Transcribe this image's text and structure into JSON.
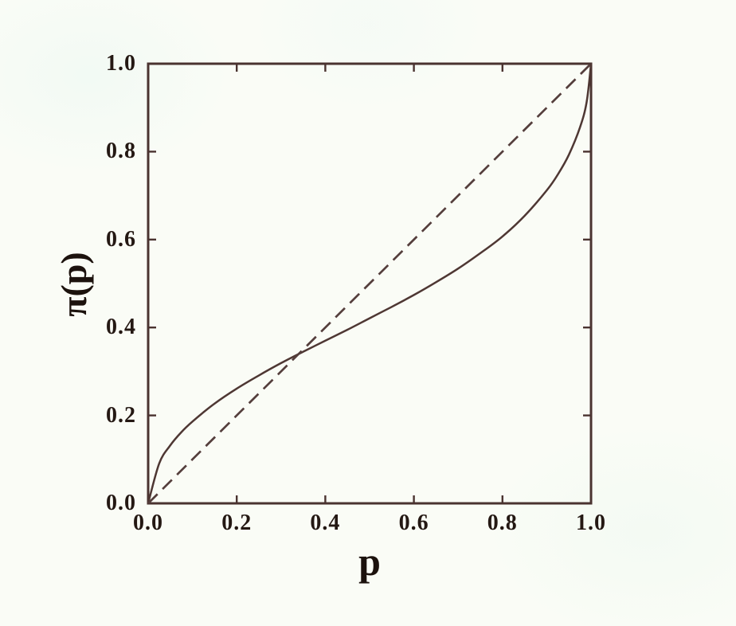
{
  "figure": {
    "background_color": "#fafcf6",
    "axis_color": "#4a3330",
    "curve_color": "#4e3733",
    "dashed_color": "#543e3c",
    "label_color": "#241813"
  },
  "chart_data": {
    "type": "line",
    "title": "",
    "xlabel": "p",
    "ylabel": "π(p)",
    "xlim": [
      0,
      1
    ],
    "ylim": [
      0,
      1
    ],
    "grid": false,
    "legend": "none",
    "x_tick_values": [
      0,
      0.2,
      0.4,
      0.6,
      0.8,
      1
    ],
    "x_tick_labels": [
      "0.0",
      "0.2",
      "0.4",
      "0.6",
      "0.8",
      "1.0"
    ],
    "y_tick_values": [
      0,
      0.2,
      0.4,
      0.6,
      0.8,
      1
    ],
    "y_tick_labels": [
      "0.0",
      "0.2",
      "0.4",
      "0.6",
      "0.8",
      "1.0"
    ],
    "crossing_point": [
      0.34,
      0.34
    ],
    "series": [
      {
        "name": "probability-weighting-curve",
        "style": "solid",
        "x": [
          0,
          0.025,
          0.05,
          0.075,
          0.1,
          0.15,
          0.2,
          0.25,
          0.3,
          0.35,
          0.4,
          0.45,
          0.5,
          0.55,
          0.6,
          0.65,
          0.7,
          0.75,
          0.8,
          0.85,
          0.9,
          0.925,
          0.95,
          0.975,
          0.99,
          1
        ],
        "y": [
          0,
          0.091,
          0.132,
          0.162,
          0.186,
          0.227,
          0.261,
          0.291,
          0.319,
          0.345,
          0.37,
          0.395,
          0.421,
          0.447,
          0.474,
          0.503,
          0.534,
          0.569,
          0.607,
          0.654,
          0.712,
          0.748,
          0.793,
          0.855,
          0.912,
          1
        ]
      },
      {
        "name": "identity-diagonal",
        "style": "dashed",
        "x": [
          0,
          1
        ],
        "y": [
          0,
          1
        ]
      }
    ]
  }
}
